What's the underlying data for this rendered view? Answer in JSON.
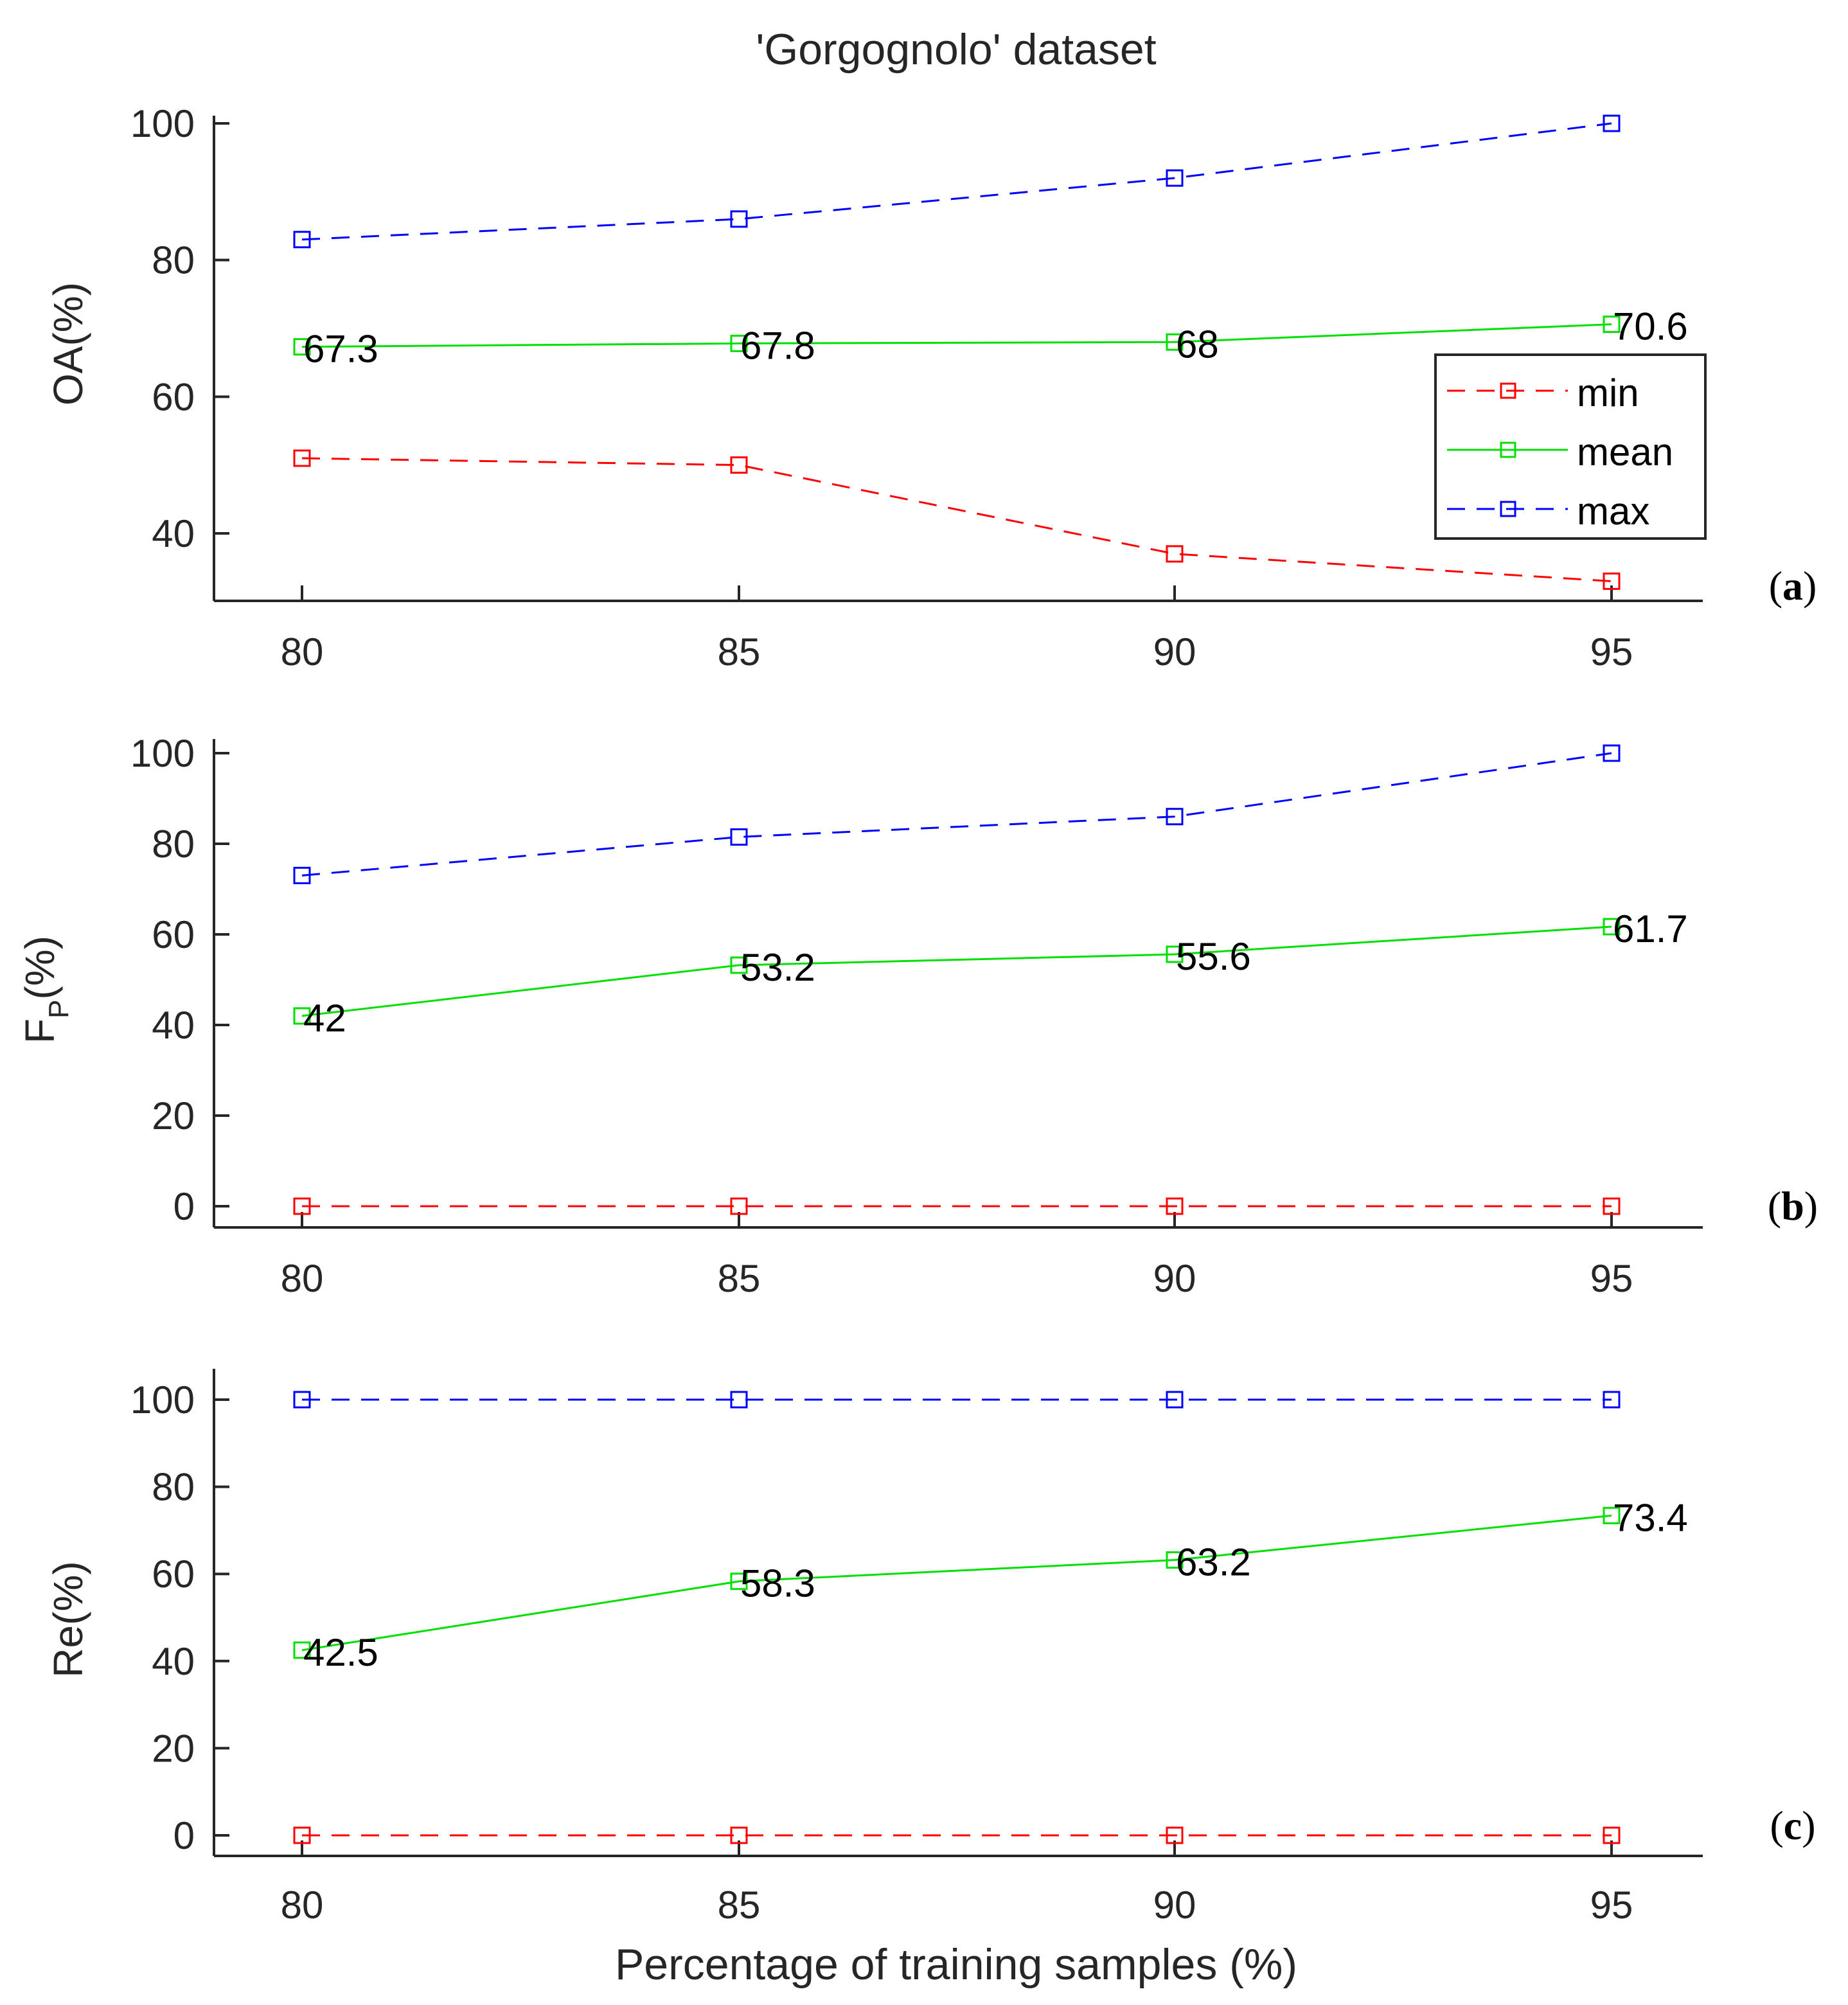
{
  "chart_data": {
    "type": "line",
    "title": "'Gorgognolo' dataset",
    "xlabel": "Percentage of training samples (%)",
    "x": [
      80,
      85,
      90,
      95
    ],
    "xticks": [
      "80",
      "85",
      "90",
      "95"
    ],
    "colors": {
      "min": "#ff0000",
      "mean": "#00e000",
      "max": "#0000ff"
    },
    "legend": {
      "entries": [
        "min",
        "mean",
        "max"
      ],
      "placement": "inside right of panel (a)"
    },
    "panels": [
      {
        "id": "a",
        "tag": {
          "open": "(",
          "letter": "a",
          "close": ")"
        },
        "ylabel": "OA(%)",
        "ylim": [
          30,
          100
        ],
        "yticks": [
          40,
          60,
          80,
          100
        ],
        "series": [
          {
            "name": "min",
            "values": [
              51,
              50,
              37,
              33
            ]
          },
          {
            "name": "mean",
            "values": [
              67.3,
              67.8,
              68,
              70.6
            ]
          },
          {
            "name": "max",
            "values": [
              83,
              86,
              92,
              100
            ]
          }
        ],
        "labels": [
          "67.3",
          "67.8",
          "68",
          "70.6"
        ]
      },
      {
        "id": "b",
        "tag": {
          "open": "(",
          "letter": "b",
          "close": ")"
        },
        "ylabel_main": "F",
        "ylabel_sub": "P",
        "ylabel_rest": "(%)",
        "ylim": [
          -5,
          105
        ],
        "yticks": [
          0,
          20,
          40,
          60,
          80,
          100
        ],
        "series": [
          {
            "name": "min",
            "values": [
              0,
              0,
              0,
              0
            ]
          },
          {
            "name": "mean",
            "values": [
              42,
              53.2,
              55.6,
              61.7
            ]
          },
          {
            "name": "max",
            "values": [
              73,
              81.5,
              86,
              100
            ]
          }
        ],
        "labels": [
          "42",
          "53.2",
          "55.6",
          "61.7"
        ]
      },
      {
        "id": "c",
        "tag": {
          "open": "(",
          "letter": "c",
          "close": ")"
        },
        "ylabel": "Re(%)",
        "ylim": [
          -5,
          105
        ],
        "yticks": [
          0,
          20,
          40,
          60,
          80,
          100
        ],
        "series": [
          {
            "name": "min",
            "values": [
              0,
              0,
              0,
              0
            ]
          },
          {
            "name": "mean",
            "values": [
              42.5,
              58.3,
              63.2,
              73.4
            ]
          },
          {
            "name": "max",
            "values": [
              100,
              100,
              100,
              100
            ]
          }
        ],
        "labels": [
          "42.5",
          "58.3",
          "63.2",
          "73.4"
        ]
      }
    ]
  }
}
